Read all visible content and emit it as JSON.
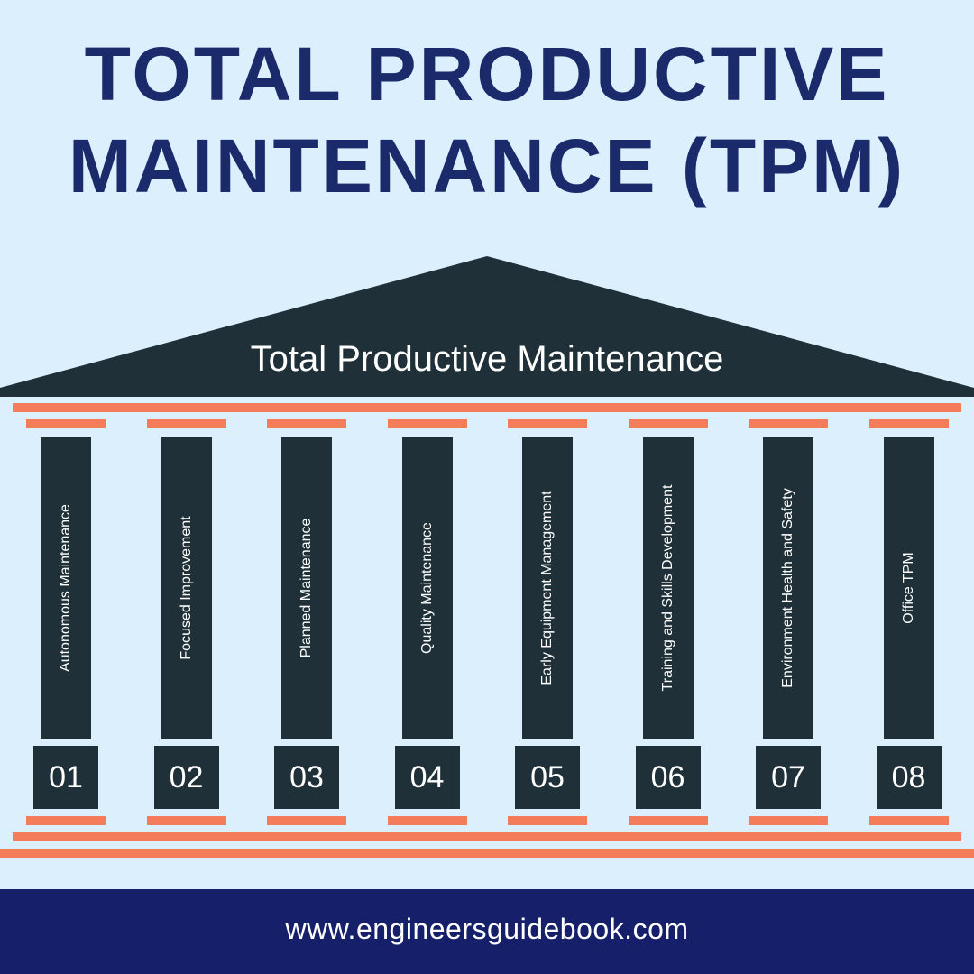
{
  "title": {
    "line1": "TOTAL PRODUCTIVE",
    "line2": "MAINTENANCE (TPM)"
  },
  "roof_label": "Total Productive Maintenance",
  "pillars": [
    {
      "number": "01",
      "label": "Autonomous Maintenance"
    },
    {
      "number": "02",
      "label": "Focused Improvement"
    },
    {
      "number": "03",
      "label": "Planned Maintenance"
    },
    {
      "number": "04",
      "label": "Quality Maintenance"
    },
    {
      "number": "05",
      "label": "Early Equipment Management"
    },
    {
      "number": "06",
      "label": "Training and Skills Development"
    },
    {
      "number": "07",
      "label": "Environment Health and Safety"
    },
    {
      "number": "08",
      "label": "Office TPM"
    }
  ],
  "footer": {
    "website": "www.engineersguidebook.com"
  },
  "colors": {
    "background": "#dbeffc",
    "title": "#1b2a6b",
    "pillar": "#1f3038",
    "accent": "#f47c5a",
    "footer": "#16206a"
  }
}
